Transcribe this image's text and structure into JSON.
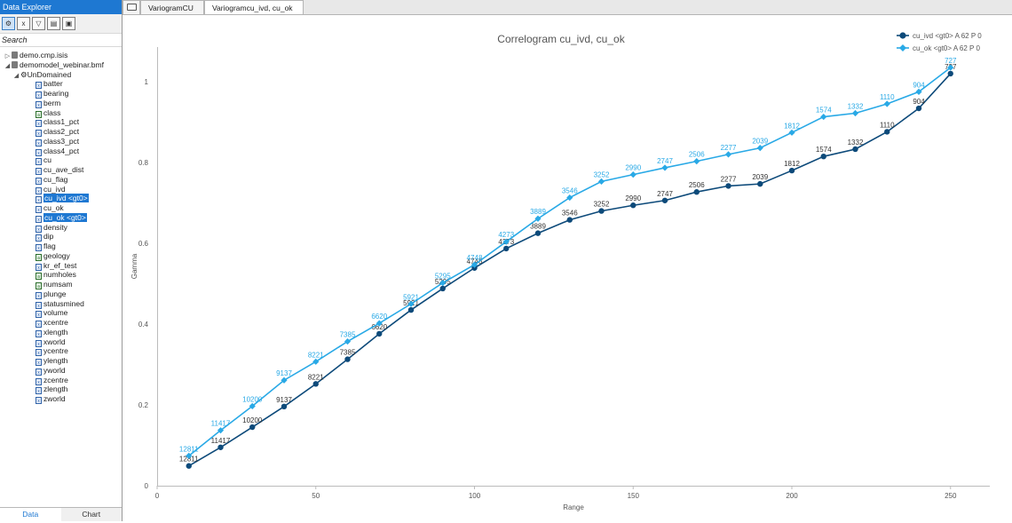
{
  "sidebar": {
    "title": "Data Explorer",
    "toolbar": [
      "tree-view",
      "expression",
      "filter",
      "table",
      "save"
    ],
    "search_label": "Search",
    "tree": {
      "files": [
        "demo.cmp.isis",
        "demomodel_webinar.bmf"
      ],
      "group": "UnDomained",
      "fields": [
        {
          "label": "batter",
          "type": "num"
        },
        {
          "label": "bearing",
          "type": "num"
        },
        {
          "label": "berm",
          "type": "num"
        },
        {
          "label": "class",
          "type": "text"
        },
        {
          "label": "class1_pct",
          "type": "num"
        },
        {
          "label": "class2_pct",
          "type": "num"
        },
        {
          "label": "class3_pct",
          "type": "num"
        },
        {
          "label": "class4_pct",
          "type": "num"
        },
        {
          "label": "cu",
          "type": "num"
        },
        {
          "label": "cu_ave_dist",
          "type": "num"
        },
        {
          "label": "cu_flag",
          "type": "num"
        },
        {
          "label": "cu_ivd",
          "type": "num"
        },
        {
          "label": "cu_ivd <gt0>",
          "type": "num",
          "selected": true
        },
        {
          "label": "cu_ok",
          "type": "num"
        },
        {
          "label": "cu_ok <gt0>",
          "type": "num",
          "selected": true
        },
        {
          "label": "density",
          "type": "num"
        },
        {
          "label": "dip",
          "type": "num"
        },
        {
          "label": "flag",
          "type": "num"
        },
        {
          "label": "geology",
          "type": "text"
        },
        {
          "label": "kr_ef_test",
          "type": "num"
        },
        {
          "label": "numholes",
          "type": "text"
        },
        {
          "label": "numsam",
          "type": "text"
        },
        {
          "label": "plunge",
          "type": "num"
        },
        {
          "label": "statusmined",
          "type": "num"
        },
        {
          "label": "volume",
          "type": "num"
        },
        {
          "label": "xcentre",
          "type": "num"
        },
        {
          "label": "xlength",
          "type": "num"
        },
        {
          "label": "xworld",
          "type": "num"
        },
        {
          "label": "ycentre",
          "type": "num"
        },
        {
          "label": "ylength",
          "type": "num"
        },
        {
          "label": "yworld",
          "type": "num"
        },
        {
          "label": "zcentre",
          "type": "num"
        },
        {
          "label": "zlength",
          "type": "num"
        },
        {
          "label": "zworld",
          "type": "num"
        }
      ]
    },
    "bottom_tabs": [
      "Data",
      "Chart"
    ],
    "active_bottom_tab": "Data"
  },
  "tabs": [
    {
      "label": "VariogramCU",
      "active": false
    },
    {
      "label": "Variogramcu_ivd, cu_ok",
      "active": true
    }
  ],
  "colors": {
    "accent": "#1e78d2",
    "series_dark": "#0d4a7a",
    "series_light": "#29a9e6"
  },
  "chart_data": {
    "type": "line",
    "title": "Correlogram cu_ivd, cu_ok",
    "xlabel": "Range",
    "ylabel": "Gamma",
    "xlim": [
      0,
      262
    ],
    "ylim": [
      0,
      1.09
    ],
    "xticks": [
      0,
      50,
      100,
      150,
      200,
      250
    ],
    "yticks": [
      0,
      0.2,
      0.4,
      0.6,
      0.8,
      1
    ],
    "grid": false,
    "legend_position": "top-right",
    "x": [
      10,
      20,
      30,
      40,
      50,
      60,
      70,
      80,
      90,
      100,
      110,
      120,
      130,
      140,
      150,
      160,
      170,
      180,
      190,
      200,
      210,
      220,
      230,
      240,
      250
    ],
    "point_labels": [
      "12811",
      "11417",
      "10200",
      "9137",
      "8221",
      "7385",
      "6620",
      "5921",
      "5295",
      "4748",
      "4273",
      "3889",
      "3546",
      "3252",
      "2990",
      "2747",
      "2506",
      "2277",
      "2039",
      "1812",
      "1574",
      "1332",
      "1110",
      "904",
      "727"
    ],
    "series": [
      {
        "name": "cu_ivd <gt0> A 62 P 0",
        "color": "#0d4a7a",
        "marker": "circle",
        "values": [
          0.049,
          0.095,
          0.145,
          0.196,
          0.252,
          0.313,
          0.376,
          0.435,
          0.488,
          0.539,
          0.587,
          0.625,
          0.658,
          0.68,
          0.694,
          0.706,
          0.727,
          0.742,
          0.747,
          0.78,
          0.815,
          0.833,
          0.876,
          0.934,
          1.02
        ]
      },
      {
        "name": "cu_ok <gt0> A 62 P 0",
        "color": "#29a9e6",
        "marker": "diamond",
        "values": [
          0.074,
          0.137,
          0.197,
          0.261,
          0.307,
          0.357,
          0.402,
          0.45,
          0.502,
          0.547,
          0.604,
          0.661,
          0.713,
          0.753,
          0.77,
          0.787,
          0.803,
          0.82,
          0.836,
          0.874,
          0.913,
          0.922,
          0.945,
          0.975,
          1.035
        ]
      }
    ]
  }
}
